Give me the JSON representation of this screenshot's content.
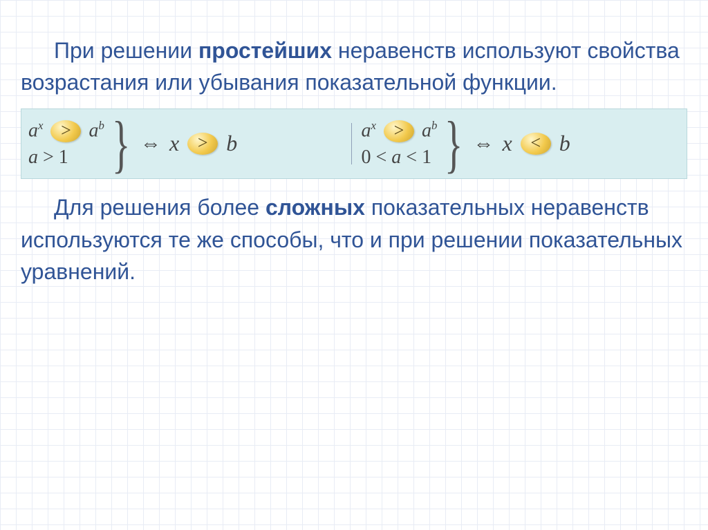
{
  "paragraph1": {
    "prefix": "При решении ",
    "bold": "простейших",
    "rest": " неравенств используют свойства возрастания или убывания показательной функции."
  },
  "formula": {
    "left": {
      "line1_base1": "a",
      "line1_exp1": "x",
      "line1_op": ">",
      "line1_base2": "a",
      "line1_exp2": "b",
      "line2": "a > 1",
      "implies": "⇔",
      "var": "x",
      "result_op": ">",
      "rhs": "b"
    },
    "right": {
      "line1_base1": "a",
      "line1_exp1": "x",
      "line1_op": ">",
      "line1_base2": "a",
      "line1_exp2": "b",
      "line2": "0 < a < 1",
      "implies": "⇔",
      "var": "x",
      "result_op": "<",
      "rhs": "b"
    }
  },
  "paragraph2": {
    "prefix": "Для решения более ",
    "bold": "сложных",
    "rest": " показательных неравенств используются те же способы, что и при решении показательных уравнений."
  },
  "colors": {
    "text": "#305496",
    "panel_bg": "#d9eef0",
    "math": "#444444",
    "bubble_start": "#fff6c8",
    "bubble_mid": "#f2c94c",
    "bubble_end": "#caa32e",
    "grid": "#e8ecf5"
  },
  "fontsize": {
    "paragraph": 32,
    "math": 28,
    "bubble": 26,
    "brace": 92
  }
}
